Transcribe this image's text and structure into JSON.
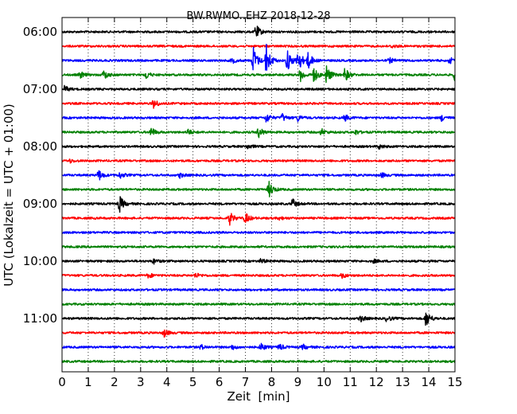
{
  "chart_data": {
    "type": "line",
    "title": "BW.RWMO..EHZ 2018-12-28",
    "xlabel": "Zeit  [min]",
    "ylabel": "UTC (Lokalzeit = UTC + 01:00)",
    "xlim": [
      0,
      15
    ],
    "x_ticks": [
      "0",
      "1",
      "2",
      "3",
      "4",
      "5",
      "6",
      "7",
      "8",
      "9",
      "10",
      "11",
      "12",
      "13",
      "14",
      "15"
    ],
    "y_tick_labels": [
      "06:00",
      "07:00",
      "08:00",
      "09:00",
      "10:00",
      "11:00"
    ],
    "grid": "vertical dotted",
    "color_cycle": [
      "#000000",
      "#ff0000",
      "#0000ff",
      "#008000"
    ],
    "traces": [
      {
        "label": "06:00",
        "events": [
          {
            "t": 7.4,
            "amp": 9
          }
        ]
      },
      {
        "label": "06:15",
        "events": [
          {
            "t": 12.6,
            "amp": 2
          }
        ]
      },
      {
        "label": "06:30",
        "events": [
          {
            "t": 6.5,
            "amp": 3
          },
          {
            "t": 7.3,
            "amp": 18
          },
          {
            "t": 7.8,
            "amp": 20
          },
          {
            "t": 8.6,
            "amp": 14
          },
          {
            "t": 9.0,
            "amp": 16
          },
          {
            "t": 9.4,
            "amp": 10
          },
          {
            "t": 12.5,
            "amp": 3
          },
          {
            "t": 14.8,
            "amp": 4
          }
        ]
      },
      {
        "label": "06:45",
        "events": [
          {
            "t": 0.7,
            "amp": 4
          },
          {
            "t": 1.6,
            "amp": 6
          },
          {
            "t": 3.2,
            "amp": 5
          },
          {
            "t": 9.1,
            "amp": 8
          },
          {
            "t": 9.6,
            "amp": 10
          },
          {
            "t": 10.1,
            "amp": 12
          },
          {
            "t": 10.8,
            "amp": 9
          },
          {
            "t": 15.0,
            "amp": 8
          }
        ]
      },
      {
        "label": "07:00",
        "events": [
          {
            "t": 0.1,
            "amp": 4
          }
        ]
      },
      {
        "label": "07:15",
        "events": [
          {
            "t": 3.5,
            "amp": 6
          }
        ]
      },
      {
        "label": "07:30",
        "events": [
          {
            "t": 7.8,
            "amp": 6
          },
          {
            "t": 8.4,
            "amp": 5
          },
          {
            "t": 9.0,
            "amp": 4
          },
          {
            "t": 10.8,
            "amp": 4
          },
          {
            "t": 14.5,
            "amp": 4
          }
        ]
      },
      {
        "label": "07:45",
        "events": [
          {
            "t": 3.4,
            "amp": 6
          },
          {
            "t": 4.8,
            "amp": 4
          },
          {
            "t": 7.5,
            "amp": 7
          },
          {
            "t": 9.9,
            "amp": 4
          },
          {
            "t": 11.2,
            "amp": 3
          }
        ]
      },
      {
        "label": "08:00",
        "events": [
          {
            "t": 7.1,
            "amp": 3
          },
          {
            "t": 12.1,
            "amp": 3
          }
        ]
      },
      {
        "label": "08:15",
        "events": [
          {
            "t": 0.3,
            "amp": 2
          }
        ]
      },
      {
        "label": "08:30",
        "events": [
          {
            "t": 1.4,
            "amp": 7
          },
          {
            "t": 2.2,
            "amp": 4
          },
          {
            "t": 4.5,
            "amp": 3
          },
          {
            "t": 12.2,
            "amp": 3
          }
        ]
      },
      {
        "label": "08:45",
        "events": [
          {
            "t": 7.9,
            "amp": 10
          }
        ]
      },
      {
        "label": "09:00",
        "events": [
          {
            "t": 2.2,
            "amp": 10
          },
          {
            "t": 8.8,
            "amp": 6
          }
        ]
      },
      {
        "label": "09:15",
        "events": [
          {
            "t": 6.4,
            "amp": 8
          },
          {
            "t": 7.0,
            "amp": 7
          },
          {
            "t": 8.3,
            "amp": 2
          }
        ]
      },
      {
        "label": "09:30",
        "events": []
      },
      {
        "label": "09:45",
        "events": []
      },
      {
        "label": "10:00",
        "events": [
          {
            "t": 3.5,
            "amp": 3
          },
          {
            "t": 7.6,
            "amp": 3
          },
          {
            "t": 11.9,
            "amp": 2
          }
        ]
      },
      {
        "label": "10:15",
        "events": [
          {
            "t": 3.3,
            "amp": 3
          },
          {
            "t": 5.1,
            "amp": 3
          },
          {
            "t": 10.7,
            "amp": 3
          }
        ]
      },
      {
        "label": "10:30",
        "events": []
      },
      {
        "label": "10:45",
        "events": []
      },
      {
        "label": "11:00",
        "events": [
          {
            "t": 11.4,
            "amp": 4
          },
          {
            "t": 12.4,
            "amp": 4
          },
          {
            "t": 13.9,
            "amp": 11
          }
        ]
      },
      {
        "label": "11:15",
        "events": [
          {
            "t": 3.9,
            "amp": 5
          }
        ]
      },
      {
        "label": "11:30",
        "events": [
          {
            "t": 5.3,
            "amp": 3
          },
          {
            "t": 6.5,
            "amp": 3
          },
          {
            "t": 7.6,
            "amp": 5
          },
          {
            "t": 8.3,
            "amp": 4
          },
          {
            "t": 9.2,
            "amp": 3
          }
        ]
      },
      {
        "label": "11:45",
        "events": []
      }
    ]
  }
}
